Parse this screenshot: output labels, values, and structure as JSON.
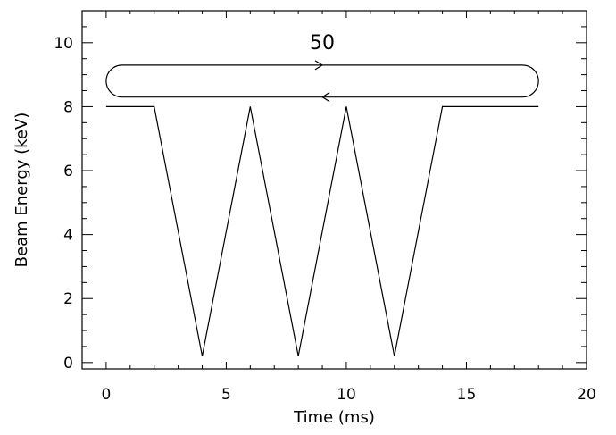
{
  "chart_data": {
    "type": "line",
    "title": "",
    "xlabel": "Time (ms)",
    "ylabel": "Beam Energy (keV)",
    "xlim": [
      -1,
      20
    ],
    "ylim": [
      -0.2,
      11
    ],
    "x_ticks": [
      0,
      5,
      10,
      15,
      20
    ],
    "y_ticks": [
      0,
      2,
      4,
      6,
      8,
      10
    ],
    "x_tick_labels": [
      "0",
      "5",
      "10",
      "15",
      "20"
    ],
    "y_tick_labels": [
      "0",
      "2",
      "4",
      "6",
      "8",
      "10"
    ],
    "grid": false,
    "series": [
      {
        "x": [
          0,
          2,
          4,
          6,
          8,
          10,
          12,
          14,
          18
        ],
        "y": [
          8,
          8,
          0.2,
          8,
          0.2,
          8,
          0.2,
          8,
          8
        ]
      }
    ],
    "annotations": [
      {
        "text": "50",
        "x": 9.0,
        "y": 9.8
      }
    ],
    "loop_diagram": {
      "x_range": [
        0,
        18
      ],
      "y_range": [
        8.3,
        9.3
      ],
      "upper_arrow_x": 9.0,
      "lower_arrow_x": 9.0,
      "upper_direction": "right",
      "lower_direction": "left"
    },
    "colors": {
      "line": "#000000",
      "axis": "#000000",
      "background": "#ffffff"
    }
  }
}
